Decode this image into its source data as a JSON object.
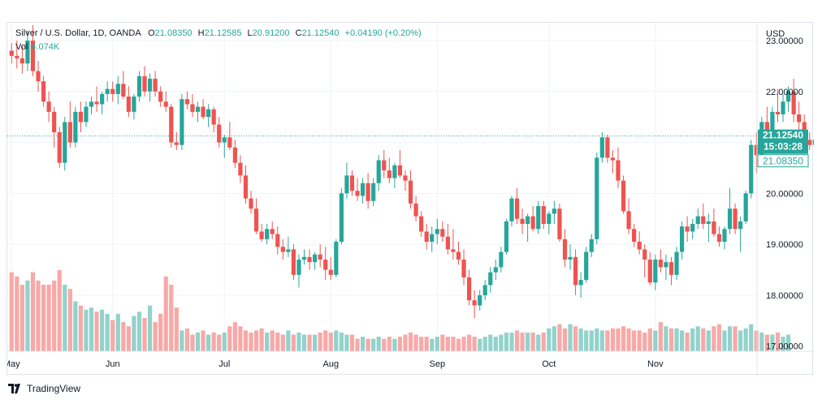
{
  "header": {
    "symbol": "Silver / U.S. Dollar, 1D, OANDA",
    "open_label": "O",
    "open_value": "21.08350",
    "high_label": "H",
    "high_value": "21.12585",
    "low_label": "L",
    "low_value": "20.91200",
    "close_label": "C",
    "close_value": "21.12540",
    "change_value": "+0.04190 (+0.20%)",
    "vol_label": "Vol",
    "vol_value": "4.074K"
  },
  "price_scale": {
    "currency": "USD",
    "ticks": [
      "23.00000",
      "22.00000",
      "21.00000",
      "20.00000",
      "19.00000",
      "18.00000",
      "17.00000"
    ],
    "last_price": "21.12540",
    "countdown": "15:03:28",
    "prev_close": "21.08350"
  },
  "colors": {
    "up": "#26a69a",
    "down": "#ef5350",
    "up_vol": "#92d2cc",
    "down_vol": "#f7a9a7"
  },
  "footer": {
    "brand": "TradingView"
  },
  "chart_data": {
    "type": "candlestick",
    "title": "Silver / U.S. Dollar, 1D, OANDA",
    "ylabel": "USD",
    "ylim": [
      16.9,
      23.35
    ],
    "x_ticks": [
      "May",
      "Jun",
      "Jul",
      "Aug",
      "Sep",
      "Oct",
      "Nov"
    ],
    "x_tick_index": [
      0,
      19,
      40,
      60,
      80,
      101,
      121
    ],
    "candles": [
      [
        22.8,
        22.95,
        22.55,
        22.7
      ],
      [
        22.7,
        23.0,
        22.45,
        22.65
      ],
      [
        22.65,
        22.9,
        22.35,
        22.55
      ],
      [
        22.55,
        23.2,
        22.4,
        23.0
      ],
      [
        23.0,
        23.3,
        22.3,
        22.4
      ],
      [
        22.4,
        22.6,
        22.0,
        22.2
      ],
      [
        22.2,
        22.3,
        21.7,
        21.8
      ],
      [
        21.8,
        22.0,
        21.4,
        21.6
      ],
      [
        21.6,
        21.7,
        20.9,
        21.2
      ],
      [
        21.2,
        21.3,
        20.5,
        20.6
      ],
      [
        20.6,
        21.5,
        20.45,
        21.4
      ],
      [
        21.4,
        21.8,
        20.9,
        21.0
      ],
      [
        21.0,
        21.7,
        20.9,
        21.6
      ],
      [
        21.6,
        21.8,
        21.2,
        21.4
      ],
      [
        21.4,
        21.8,
        21.3,
        21.7
      ],
      [
        21.7,
        21.9,
        21.55,
        21.8
      ],
      [
        21.8,
        22.1,
        21.6,
        21.75
      ],
      [
        21.75,
        22.0,
        21.55,
        21.95
      ],
      [
        21.95,
        22.2,
        21.8,
        22.05
      ],
      [
        22.05,
        22.2,
        21.8,
        21.95
      ],
      [
        21.95,
        22.3,
        21.75,
        22.15
      ],
      [
        22.15,
        22.4,
        21.85,
        21.9
      ],
      [
        21.9,
        22.1,
        21.5,
        21.6
      ],
      [
        21.6,
        21.95,
        21.45,
        21.9
      ],
      [
        21.9,
        22.4,
        21.8,
        22.3
      ],
      [
        22.3,
        22.5,
        21.9,
        22.0
      ],
      [
        22.0,
        22.35,
        21.8,
        22.25
      ],
      [
        22.25,
        22.4,
        21.9,
        22.0
      ],
      [
        22.0,
        22.1,
        21.7,
        21.8
      ],
      [
        21.8,
        22.0,
        21.6,
        21.7
      ],
      [
        21.7,
        21.75,
        20.9,
        21.0
      ],
      [
        21.0,
        21.2,
        20.85,
        20.95
      ],
      [
        20.95,
        21.95,
        20.85,
        21.85
      ],
      [
        21.85,
        22.0,
        21.65,
        21.75
      ],
      [
        21.75,
        21.95,
        21.5,
        21.6
      ],
      [
        21.6,
        21.8,
        21.4,
        21.7
      ],
      [
        21.7,
        21.85,
        21.45,
        21.5
      ],
      [
        21.5,
        21.75,
        21.3,
        21.65
      ],
      [
        21.65,
        21.7,
        21.2,
        21.35
      ],
      [
        21.35,
        21.5,
        20.9,
        21.0
      ],
      [
        21.0,
        21.15,
        20.7,
        21.1
      ],
      [
        21.1,
        21.4,
        20.85,
        20.9
      ],
      [
        20.9,
        21.05,
        20.5,
        20.6
      ],
      [
        20.6,
        20.75,
        20.2,
        20.35
      ],
      [
        20.35,
        20.55,
        19.8,
        19.9
      ],
      [
        19.9,
        20.05,
        19.6,
        19.7
      ],
      [
        19.7,
        19.9,
        19.2,
        19.25
      ],
      [
        19.25,
        19.4,
        19.05,
        19.1
      ],
      [
        19.1,
        19.4,
        19.0,
        19.3
      ],
      [
        19.3,
        19.45,
        19.1,
        19.2
      ],
      [
        19.2,
        19.35,
        18.8,
        18.95
      ],
      [
        18.95,
        19.1,
        18.7,
        18.85
      ],
      [
        18.85,
        19.15,
        18.75,
        18.9
      ],
      [
        18.9,
        19.0,
        18.3,
        18.4
      ],
      [
        18.4,
        18.8,
        18.15,
        18.7
      ],
      [
        18.7,
        18.9,
        18.6,
        18.75
      ],
      [
        18.75,
        18.9,
        18.5,
        18.65
      ],
      [
        18.65,
        18.85,
        18.5,
        18.8
      ],
      [
        18.8,
        19.0,
        18.55,
        18.7
      ],
      [
        18.7,
        18.95,
        18.3,
        18.5
      ],
      [
        18.5,
        18.75,
        18.3,
        18.4
      ],
      [
        18.4,
        19.1,
        18.35,
        19.05
      ],
      [
        19.05,
        20.1,
        19.0,
        20.0
      ],
      [
        20.0,
        20.6,
        19.9,
        20.35
      ],
      [
        20.35,
        20.45,
        19.95,
        20.05
      ],
      [
        20.05,
        20.3,
        19.85,
        19.95
      ],
      [
        19.95,
        20.3,
        19.8,
        20.2
      ],
      [
        20.2,
        20.4,
        19.7,
        19.85
      ],
      [
        19.85,
        20.3,
        19.75,
        20.2
      ],
      [
        20.2,
        20.75,
        20.05,
        20.65
      ],
      [
        20.65,
        20.85,
        20.3,
        20.45
      ],
      [
        20.45,
        20.7,
        20.2,
        20.3
      ],
      [
        20.3,
        20.6,
        20.1,
        20.55
      ],
      [
        20.55,
        20.85,
        20.3,
        20.35
      ],
      [
        20.35,
        20.45,
        20.05,
        20.25
      ],
      [
        20.25,
        20.45,
        19.7,
        19.8
      ],
      [
        19.8,
        19.95,
        19.45,
        19.55
      ],
      [
        19.55,
        19.65,
        19.15,
        19.25
      ],
      [
        19.25,
        19.4,
        18.9,
        19.05
      ],
      [
        19.05,
        19.35,
        18.85,
        19.2
      ],
      [
        19.2,
        19.5,
        19.0,
        19.3
      ],
      [
        19.3,
        19.45,
        19.05,
        19.15
      ],
      [
        19.15,
        19.4,
        18.8,
        18.9
      ],
      [
        18.9,
        19.3,
        18.7,
        18.85
      ],
      [
        18.85,
        19.05,
        18.6,
        18.7
      ],
      [
        18.7,
        18.9,
        18.2,
        18.35
      ],
      [
        18.35,
        18.5,
        17.8,
        17.9
      ],
      [
        17.9,
        18.1,
        17.55,
        17.8
      ],
      [
        17.8,
        18.1,
        17.7,
        18.0
      ],
      [
        18.0,
        18.3,
        17.9,
        18.2
      ],
      [
        18.2,
        18.55,
        18.05,
        18.45
      ],
      [
        18.45,
        18.7,
        18.3,
        18.55
      ],
      [
        18.55,
        18.95,
        18.45,
        18.85
      ],
      [
        18.85,
        19.5,
        18.8,
        19.45
      ],
      [
        19.45,
        19.95,
        19.35,
        19.9
      ],
      [
        19.9,
        20.1,
        19.4,
        19.5
      ],
      [
        19.5,
        19.7,
        19.2,
        19.4
      ],
      [
        19.4,
        19.6,
        19.05,
        19.55
      ],
      [
        19.55,
        19.75,
        19.25,
        19.3
      ],
      [
        19.3,
        19.85,
        19.2,
        19.75
      ],
      [
        19.75,
        19.85,
        19.3,
        19.4
      ],
      [
        19.4,
        19.65,
        19.2,
        19.6
      ],
      [
        19.6,
        19.85,
        19.4,
        19.7
      ],
      [
        19.7,
        19.8,
        19.05,
        19.1
      ],
      [
        19.1,
        19.3,
        18.55,
        18.7
      ],
      [
        18.7,
        19.0,
        18.5,
        18.75
      ],
      [
        18.75,
        18.9,
        18.0,
        18.2
      ],
      [
        18.2,
        18.45,
        17.95,
        18.3
      ],
      [
        18.3,
        18.95,
        18.25,
        18.85
      ],
      [
        18.85,
        19.2,
        18.75,
        19.1
      ],
      [
        19.1,
        20.8,
        19.0,
        20.7
      ],
      [
        20.7,
        21.2,
        20.6,
        21.1
      ],
      [
        21.1,
        21.15,
        20.6,
        20.7
      ],
      [
        20.7,
        20.85,
        20.4,
        20.65
      ],
      [
        20.65,
        20.9,
        20.1,
        20.25
      ],
      [
        20.25,
        20.35,
        19.6,
        19.65
      ],
      [
        19.65,
        19.9,
        19.2,
        19.3
      ],
      [
        19.3,
        19.4,
        18.95,
        19.05
      ],
      [
        19.05,
        19.25,
        18.8,
        18.9
      ],
      [
        18.9,
        19.0,
        18.35,
        18.7
      ],
      [
        18.7,
        18.85,
        18.2,
        18.25
      ],
      [
        18.25,
        18.8,
        18.1,
        18.7
      ],
      [
        18.7,
        18.9,
        18.45,
        18.55
      ],
      [
        18.55,
        18.8,
        18.3,
        18.65
      ],
      [
        18.65,
        18.75,
        18.2,
        18.4
      ],
      [
        18.4,
        18.95,
        18.3,
        18.85
      ],
      [
        18.85,
        19.45,
        18.7,
        19.35
      ],
      [
        19.35,
        19.55,
        19.05,
        19.25
      ],
      [
        19.25,
        19.5,
        19.1,
        19.4
      ],
      [
        19.4,
        19.7,
        19.3,
        19.55
      ],
      [
        19.55,
        19.8,
        19.3,
        19.4
      ],
      [
        19.4,
        19.6,
        19.05,
        19.45
      ],
      [
        19.45,
        19.7,
        19.15,
        19.2
      ],
      [
        19.2,
        19.35,
        18.95,
        19.05
      ],
      [
        19.05,
        19.35,
        18.9,
        19.3
      ],
      [
        19.3,
        20.1,
        19.2,
        19.7
      ],
      [
        19.7,
        19.8,
        19.2,
        19.3
      ],
      [
        19.3,
        19.55,
        18.85,
        19.45
      ],
      [
        19.45,
        20.05,
        19.4,
        20.0
      ],
      [
        20.0,
        21.05,
        19.9,
        20.95
      ],
      [
        20.95,
        21.2,
        20.4,
        20.75
      ],
      [
        20.75,
        21.5,
        20.7,
        21.4
      ],
      [
        21.4,
        21.7,
        21.0,
        21.1
      ],
      [
        21.1,
        21.7,
        20.95,
        21.6
      ],
      [
        21.6,
        22.05,
        21.4,
        21.55
      ],
      [
        21.55,
        21.95,
        21.4,
        21.8
      ],
      [
        21.8,
        22.1,
        21.6,
        22.0
      ],
      [
        22.0,
        22.25,
        21.4,
        21.55
      ],
      [
        21.55,
        21.8,
        21.05,
        21.4
      ],
      [
        21.4,
        21.55,
        20.9,
        21.05
      ],
      [
        21.05,
        21.2,
        20.85,
        20.95
      ],
      [
        20.95,
        21.15,
        20.8,
        21.05
      ],
      [
        21.08,
        21.13,
        20.91,
        21.13
      ]
    ],
    "volume": [
      1.9,
      1.8,
      1.6,
      1.7,
      1.9,
      1.7,
      1.6,
      1.6,
      1.7,
      1.95,
      1.6,
      1.5,
      1.2,
      1.1,
      1.0,
      1.05,
      0.95,
      1.0,
      0.9,
      0.75,
      0.9,
      0.7,
      0.6,
      0.85,
      0.95,
      0.8,
      1.1,
      0.7,
      0.9,
      1.8,
      1.6,
      1.05,
      0.5,
      0.55,
      0.4,
      0.45,
      0.5,
      0.4,
      0.45,
      0.4,
      0.45,
      0.6,
      0.7,
      0.6,
      0.5,
      0.45,
      0.5,
      0.55,
      0.45,
      0.5,
      0.45,
      0.4,
      0.5,
      0.4,
      0.45,
      0.4,
      0.4,
      0.4,
      0.45,
      0.5,
      0.45,
      0.5,
      0.45,
      0.4,
      0.4,
      0.3,
      0.35,
      0.3,
      0.3,
      0.35,
      0.3,
      0.35,
      0.3,
      0.35,
      0.4,
      0.45,
      0.4,
      0.35,
      0.35,
      0.3,
      0.35,
      0.4,
      0.35,
      0.35,
      0.3,
      0.35,
      0.4,
      0.35,
      0.3,
      0.35,
      0.4,
      0.35,
      0.4,
      0.45,
      0.45,
      0.5,
      0.45,
      0.45,
      0.45,
      0.4,
      0.45,
      0.55,
      0.6,
      0.65,
      0.55,
      0.65,
      0.6,
      0.55,
      0.5,
      0.5,
      0.55,
      0.5,
      0.5,
      0.55,
      0.55,
      0.6,
      0.55,
      0.5,
      0.5,
      0.45,
      0.55,
      0.5,
      0.7,
      0.6,
      0.55,
      0.55,
      0.5,
      0.45,
      0.55,
      0.6,
      0.55,
      0.5,
      0.6,
      0.65,
      0.5,
      0.6,
      0.6,
      0.5,
      0.55,
      0.65,
      0.5,
      0.45,
      0.4,
      0.4,
      0.45,
      0.35,
      0.4
    ]
  }
}
